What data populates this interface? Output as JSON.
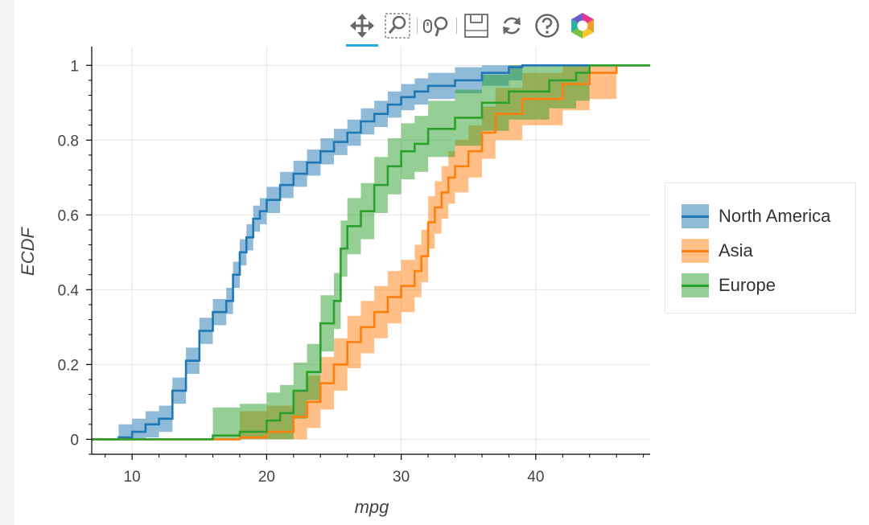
{
  "toolbar": {
    "tools": [
      {
        "name": "pan-tool",
        "icon": "move-arrows-icon",
        "active": true
      },
      {
        "name": "box-zoom-tool",
        "icon": "box-zoom-icon",
        "active": false
      },
      {
        "name": "wheel-zoom-tool",
        "icon": "wheel-zoom-icon",
        "active": false
      },
      {
        "name": "save-tool",
        "icon": "floppy-disk-icon",
        "active": false
      },
      {
        "name": "reset-tool",
        "icon": "reset-icon",
        "active": false
      },
      {
        "name": "help-tool",
        "icon": "help-question-icon",
        "active": false
      },
      {
        "name": "bokeh-logo",
        "icon": "bokeh-logo-icon",
        "active": false
      }
    ],
    "active_color": "#26aae1"
  },
  "chart_data": {
    "type": "line",
    "subtype": "ecdf-step-with-confidence-band",
    "title": "",
    "xlabel": "mpg",
    "ylabel": "ECDF",
    "xlim": [
      7,
      48.5
    ],
    "ylim": [
      -0.04,
      1.05
    ],
    "xticks": [
      10,
      20,
      30,
      40
    ],
    "xtick_labels": [
      "10",
      "20",
      "30",
      "40"
    ],
    "yticks": [
      0,
      0.2,
      0.4,
      0.6,
      0.8,
      1
    ],
    "ytick_labels": [
      "0",
      "0.2",
      "0.4",
      "0.6",
      "0.8",
      "1"
    ],
    "grid": true,
    "legend_position": "right",
    "series": [
      {
        "name": "North America",
        "color": "#1f77b4",
        "ecdf": [
          [
            9,
            0
          ],
          [
            9,
            0.005
          ],
          [
            10,
            0.005
          ],
          [
            10,
            0.02
          ],
          [
            11,
            0.02
          ],
          [
            11,
            0.04
          ],
          [
            12,
            0.04
          ],
          [
            12,
            0.055
          ],
          [
            13,
            0.055
          ],
          [
            13,
            0.13
          ],
          [
            14,
            0.13
          ],
          [
            14,
            0.21
          ],
          [
            15,
            0.21
          ],
          [
            15,
            0.29
          ],
          [
            16,
            0.29
          ],
          [
            16,
            0.34
          ],
          [
            17,
            0.34
          ],
          [
            17,
            0.37
          ],
          [
            17.5,
            0.37
          ],
          [
            17.5,
            0.44
          ],
          [
            18,
            0.44
          ],
          [
            18,
            0.5
          ],
          [
            18.5,
            0.5
          ],
          [
            18.5,
            0.54
          ],
          [
            19,
            0.54
          ],
          [
            19,
            0.59
          ],
          [
            19.5,
            0.59
          ],
          [
            19.5,
            0.61
          ],
          [
            20,
            0.61
          ],
          [
            20,
            0.64
          ],
          [
            21,
            0.64
          ],
          [
            21,
            0.68
          ],
          [
            22,
            0.68
          ],
          [
            22,
            0.71
          ],
          [
            23,
            0.71
          ],
          [
            23,
            0.74
          ],
          [
            24,
            0.74
          ],
          [
            24,
            0.77
          ],
          [
            25,
            0.77
          ],
          [
            25,
            0.795
          ],
          [
            26,
            0.795
          ],
          [
            26,
            0.82
          ],
          [
            27,
            0.82
          ],
          [
            27,
            0.85
          ],
          [
            28,
            0.85
          ],
          [
            28,
            0.87
          ],
          [
            29,
            0.87
          ],
          [
            29,
            0.895
          ],
          [
            30,
            0.895
          ],
          [
            30,
            0.915
          ],
          [
            31,
            0.915
          ],
          [
            31,
            0.93
          ],
          [
            32,
            0.93
          ],
          [
            32,
            0.945
          ],
          [
            34,
            0.945
          ],
          [
            34,
            0.96
          ],
          [
            36,
            0.96
          ],
          [
            36,
            0.98
          ],
          [
            38,
            0.98
          ],
          [
            38,
            0.995
          ],
          [
            39,
            0.995
          ],
          [
            39,
            1
          ],
          [
            48.5,
            1
          ]
        ],
        "band_halfwidth": 0.035
      },
      {
        "name": "Asia",
        "color": "#ff7f0e",
        "ecdf": [
          [
            18,
            0
          ],
          [
            18,
            0.005
          ],
          [
            20,
            0.005
          ],
          [
            20,
            0.02
          ],
          [
            22,
            0.02
          ],
          [
            22,
            0.06
          ],
          [
            23,
            0.06
          ],
          [
            23,
            0.1
          ],
          [
            24,
            0.1
          ],
          [
            24,
            0.15
          ],
          [
            25,
            0.15
          ],
          [
            25,
            0.2
          ],
          [
            26,
            0.2
          ],
          [
            26,
            0.26
          ],
          [
            27,
            0.26
          ],
          [
            27,
            0.3
          ],
          [
            28,
            0.3
          ],
          [
            28,
            0.34
          ],
          [
            29,
            0.34
          ],
          [
            29,
            0.38
          ],
          [
            30,
            0.38
          ],
          [
            30,
            0.41
          ],
          [
            31,
            0.41
          ],
          [
            31,
            0.45
          ],
          [
            31.5,
            0.45
          ],
          [
            31.5,
            0.49
          ],
          [
            32,
            0.49
          ],
          [
            32,
            0.58
          ],
          [
            32.5,
            0.58
          ],
          [
            32.5,
            0.62
          ],
          [
            33,
            0.62
          ],
          [
            33,
            0.66
          ],
          [
            33.5,
            0.66
          ],
          [
            33.5,
            0.7
          ],
          [
            34,
            0.7
          ],
          [
            34,
            0.73
          ],
          [
            35,
            0.73
          ],
          [
            35,
            0.77
          ],
          [
            36,
            0.77
          ],
          [
            36,
            0.82
          ],
          [
            37,
            0.82
          ],
          [
            37,
            0.87
          ],
          [
            39,
            0.87
          ],
          [
            39,
            0.91
          ],
          [
            42,
            0.91
          ],
          [
            42,
            0.95
          ],
          [
            44,
            0.95
          ],
          [
            44,
            0.98
          ],
          [
            46,
            0.98
          ],
          [
            46,
            1
          ],
          [
            48.5,
            1
          ]
        ],
        "band_halfwidth": 0.07
      },
      {
        "name": "Europe",
        "color": "#2ca02c",
        "ecdf": [
          [
            16,
            0
          ],
          [
            16,
            0.01
          ],
          [
            18,
            0.01
          ],
          [
            18,
            0.02
          ],
          [
            20,
            0.02
          ],
          [
            20,
            0.05
          ],
          [
            21,
            0.05
          ],
          [
            21,
            0.07
          ],
          [
            22,
            0.07
          ],
          [
            22,
            0.13
          ],
          [
            23,
            0.13
          ],
          [
            23,
            0.18
          ],
          [
            24,
            0.18
          ],
          [
            24,
            0.31
          ],
          [
            25,
            0.31
          ],
          [
            25,
            0.37
          ],
          [
            25.5,
            0.37
          ],
          [
            25.5,
            0.51
          ],
          [
            26,
            0.51
          ],
          [
            26,
            0.57
          ],
          [
            27,
            0.57
          ],
          [
            27,
            0.61
          ],
          [
            28,
            0.61
          ],
          [
            28,
            0.68
          ],
          [
            29,
            0.68
          ],
          [
            29,
            0.73
          ],
          [
            30,
            0.73
          ],
          [
            30,
            0.77
          ],
          [
            31,
            0.77
          ],
          [
            31,
            0.79
          ],
          [
            32,
            0.79
          ],
          [
            32,
            0.83
          ],
          [
            34,
            0.83
          ],
          [
            34,
            0.86
          ],
          [
            36,
            0.86
          ],
          [
            36,
            0.9
          ],
          [
            38,
            0.9
          ],
          [
            38,
            0.93
          ],
          [
            41,
            0.93
          ],
          [
            41,
            0.96
          ],
          [
            43,
            0.96
          ],
          [
            43,
            0.98
          ],
          [
            44,
            0.98
          ],
          [
            44,
            1
          ],
          [
            48.5,
            1
          ]
        ],
        "band_halfwidth": 0.075
      }
    ]
  }
}
